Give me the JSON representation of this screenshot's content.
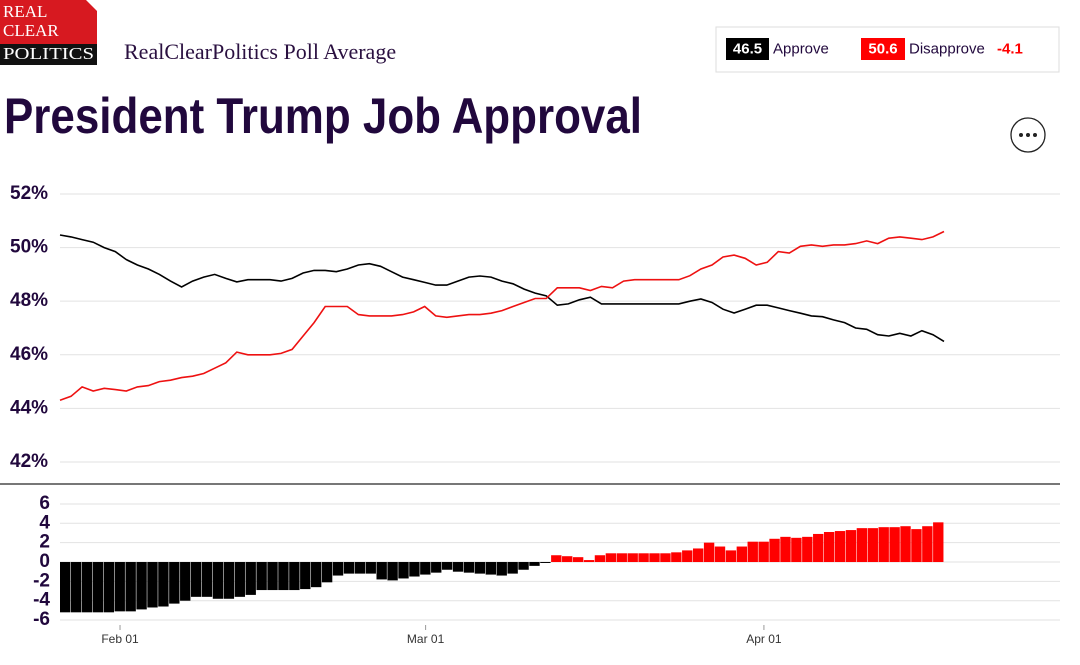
{
  "header": {
    "logo": [
      "REAL",
      "CLEAR",
      "POLITICS"
    ],
    "subtitle": "RealClearPolitics Poll Average"
  },
  "summary": {
    "approve_value": 46.5,
    "approve_label": "Approve",
    "disapprove_value": 50.6,
    "disapprove_label": "Disapprove",
    "spread": -4.1
  },
  "title": "President Trump Job Approval",
  "chart_data": [
    {
      "type": "line",
      "grid": true,
      "ylim": [
        41.2,
        52.5
      ],
      "yticks": [
        {
          "value": 42,
          "label": "42%"
        },
        {
          "value": 44,
          "label": "44%"
        },
        {
          "value": 46,
          "label": "46%"
        },
        {
          "value": 48,
          "label": "48%"
        },
        {
          "value": 50,
          "label": "50%"
        },
        {
          "value": 52,
          "label": "52%"
        }
      ],
      "series": [
        {
          "name": "Approve",
          "color": "#000000",
          "values": [
            50.47,
            50.4,
            50.3,
            50.2,
            50.0,
            49.85,
            49.55,
            49.35,
            49.2,
            49.0,
            48.75,
            48.53,
            48.75,
            48.9,
            49.0,
            48.85,
            48.72,
            48.8,
            48.8,
            48.8,
            48.75,
            48.85,
            49.05,
            49.15,
            49.15,
            49.1,
            49.2,
            49.35,
            49.4,
            49.3,
            49.1,
            48.9,
            48.8,
            48.7,
            48.6,
            48.6,
            48.75,
            48.9,
            48.94,
            48.9,
            48.75,
            48.65,
            48.45,
            48.3,
            48.2,
            47.85,
            47.9,
            48.05,
            48.15,
            47.9,
            47.9,
            47.9,
            47.9,
            47.9,
            47.9,
            47.9,
            47.9,
            48.0,
            48.08,
            47.95,
            47.7,
            47.56,
            47.7,
            47.85,
            47.85,
            47.75,
            47.65,
            47.55,
            47.45,
            47.42,
            47.3,
            47.2,
            47.0,
            46.95,
            46.75,
            46.7,
            46.8,
            46.7,
            46.9,
            46.75,
            46.5
          ]
        },
        {
          "name": "Disapprove",
          "color": "#ee1111",
          "values": [
            44.3,
            44.45,
            44.8,
            44.65,
            44.75,
            44.7,
            44.65,
            44.8,
            44.85,
            45.0,
            45.05,
            45.15,
            45.2,
            45.3,
            45.5,
            45.7,
            46.1,
            46.0,
            46.0,
            46.0,
            46.05,
            46.2,
            46.7,
            47.2,
            47.8,
            47.8,
            47.8,
            47.5,
            47.45,
            47.45,
            47.45,
            47.5,
            47.6,
            47.8,
            47.45,
            47.4,
            47.45,
            47.5,
            47.5,
            47.55,
            47.65,
            47.8,
            47.95,
            48.1,
            48.1,
            48.5,
            48.5,
            48.5,
            48.4,
            48.55,
            48.5,
            48.75,
            48.8,
            48.8,
            48.8,
            48.8,
            48.8,
            48.95,
            49.2,
            49.35,
            49.65,
            49.72,
            49.6,
            49.35,
            49.45,
            49.85,
            49.8,
            50.05,
            50.1,
            50.05,
            50.1,
            50.1,
            50.15,
            50.25,
            50.15,
            50.35,
            50.4,
            50.35,
            50.3,
            50.4,
            50.6
          ]
        }
      ]
    },
    {
      "type": "bar",
      "grid": true,
      "ylim": [
        -6.5,
        8
      ],
      "yticks": [
        -6,
        -4,
        -2,
        0,
        2,
        4,
        6
      ],
      "colors": {
        "negative": "#000000",
        "positive": "#ff0000"
      },
      "categories": [
        null,
        null,
        null,
        null,
        null,
        "Feb 01",
        null,
        null,
        null,
        null,
        null,
        null,
        null,
        null,
        null,
        null,
        null,
        null,
        null,
        null,
        null,
        null,
        null,
        null,
        null,
        null,
        null,
        null,
        null,
        null,
        null,
        null,
        null,
        "Mar 01",
        null,
        null,
        null,
        null,
        null,
        null,
        null,
        null,
        null,
        null,
        null,
        null,
        null,
        null,
        null,
        null,
        null,
        null,
        null,
        null,
        null,
        null,
        null,
        null,
        null,
        null,
        null,
        null,
        null,
        null,
        "Apr 01",
        null,
        null,
        null,
        null,
        null,
        null,
        null,
        null,
        null,
        null,
        null,
        null,
        null,
        null,
        null,
        null
      ],
      "values": [
        -5.2,
        -5.2,
        -5.2,
        -5.2,
        -5.2,
        -5.1,
        -5.1,
        -4.9,
        -4.7,
        -4.6,
        -4.3,
        -4.0,
        -3.6,
        -3.6,
        -3.8,
        -3.8,
        -3.6,
        -3.4,
        -2.9,
        -2.9,
        -2.9,
        -2.9,
        -2.8,
        -2.6,
        -2.1,
        -1.4,
        -1.2,
        -1.2,
        -1.2,
        -1.8,
        -1.9,
        -1.7,
        -1.5,
        -1.3,
        -1.1,
        -0.8,
        -1.0,
        -1.1,
        -1.2,
        -1.3,
        -1.4,
        -1.2,
        -0.8,
        -0.4,
        -0.1,
        0.7,
        0.6,
        0.5,
        0.2,
        0.7,
        0.9,
        0.9,
        0.9,
        0.9,
        0.9,
        0.9,
        1.0,
        1.2,
        1.4,
        2.0,
        1.6,
        1.2,
        1.6,
        2.1,
        2.1,
        2.4,
        2.6,
        2.5,
        2.6,
        2.9,
        3.1,
        3.2,
        3.3,
        3.5,
        3.5,
        3.6,
        3.6,
        3.7,
        3.4,
        3.7,
        4.1
      ]
    }
  ]
}
